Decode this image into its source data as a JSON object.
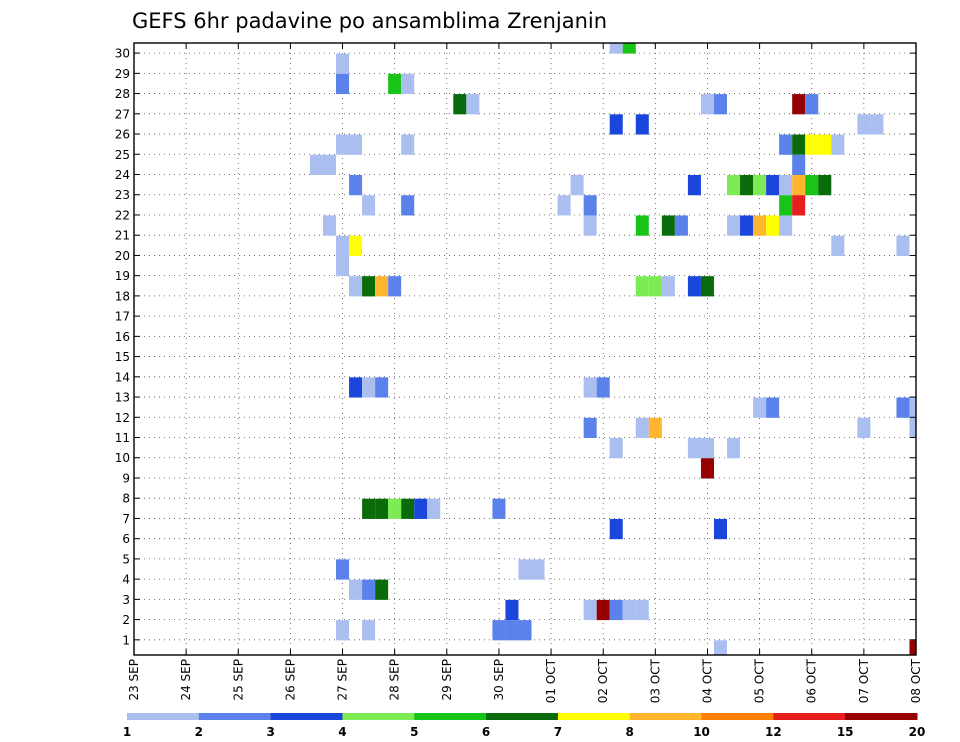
{
  "chart_data": {
    "type": "heatmap",
    "title": "GEFS 6hr padavine po ansamblima Zrenjanin",
    "xlabel": "",
    "ylabel": "",
    "x_tick_labels": [
      "23 SEP",
      "24 SEP",
      "25 SEP",
      "26 SEP",
      "27 SEP",
      "28 SEP",
      "29 SEP",
      "30 SEP",
      "01 OCT",
      "02 OCT",
      "03 OCT",
      "04 OCT",
      "05 OCT",
      "06 OCT",
      "07 OCT",
      "08 OCT"
    ],
    "y_tick_labels": [
      "1",
      "2",
      "3",
      "4",
      "5",
      "6",
      "7",
      "8",
      "9",
      "10",
      "11",
      "12",
      "13",
      "14",
      "15",
      "16",
      "17",
      "18",
      "19",
      "20",
      "21",
      "22",
      "23",
      "24",
      "25",
      "26",
      "27",
      "28",
      "29",
      "30"
    ],
    "xlim_days": [
      0,
      15
    ],
    "ylim_members": [
      0,
      30
    ],
    "time_step_hours": 6,
    "grid": true,
    "legend_position": "bottom",
    "color_scale": {
      "labels": [
        "1",
        "2",
        "3",
        "4",
        "5",
        "6",
        "7",
        "8",
        "10",
        "12",
        "15",
        "20"
      ],
      "colors": [
        "#aabff0",
        "#5b82ea",
        "#1a46dc",
        "#7ceb54",
        "#19c419",
        "#0a6b0a",
        "#ffff00",
        "#ffb52d",
        "#ff7f00",
        "#e61e1e",
        "#960000"
      ],
      "cell_colors_by_level": [
        "",
        "#aabff0",
        "#5b82ea",
        "#1a46dc",
        "#7ceb54",
        "#19c419",
        "#0a6b0a",
        "#ffff00",
        "#ffb52d",
        "#ff7f00",
        "#e61e1e",
        "#960000"
      ]
    },
    "cells": [
      [
        30,
        9.25,
        1
      ],
      [
        30,
        9.5,
        5
      ],
      [
        29,
        4,
        1
      ],
      [
        28,
        4,
        2
      ],
      [
        28,
        5,
        5
      ],
      [
        28,
        5.25,
        1
      ],
      [
        27,
        6.25,
        6
      ],
      [
        27,
        6.5,
        1
      ],
      [
        27,
        11,
        1
      ],
      [
        27,
        11.25,
        2
      ],
      [
        27,
        12.75,
        11
      ],
      [
        27,
        13,
        2
      ],
      [
        26,
        9.25,
        3
      ],
      [
        26,
        9.75,
        3
      ],
      [
        26,
        14,
        1
      ],
      [
        26,
        14.25,
        1
      ],
      [
        25,
        4,
        1
      ],
      [
        25,
        4.25,
        1
      ],
      [
        25,
        5.25,
        1
      ],
      [
        25,
        12.5,
        2
      ],
      [
        25,
        12.75,
        6
      ],
      [
        25,
        13,
        7
      ],
      [
        25,
        13.25,
        7
      ],
      [
        25,
        13.5,
        1
      ],
      [
        24,
        3.5,
        1
      ],
      [
        24,
        3.75,
        1
      ],
      [
        24,
        12.75,
        2
      ],
      [
        23,
        4.25,
        2
      ],
      [
        23,
        8.5,
        1
      ],
      [
        23,
        10.75,
        3
      ],
      [
        23,
        11.5,
        4
      ],
      [
        23,
        11.75,
        6
      ],
      [
        23,
        12,
        4
      ],
      [
        23,
        12.25,
        3
      ],
      [
        23,
        12.5,
        1
      ],
      [
        23,
        12.75,
        8
      ],
      [
        23,
        13,
        5
      ],
      [
        23,
        13.25,
        6
      ],
      [
        22,
        4.5,
        1
      ],
      [
        22,
        5.25,
        2
      ],
      [
        22,
        8.25,
        1
      ],
      [
        22,
        8.75,
        2
      ],
      [
        22,
        12.5,
        5
      ],
      [
        22,
        12.75,
        10
      ],
      [
        21,
        3.75,
        1
      ],
      [
        21,
        8.75,
        1
      ],
      [
        21,
        9.75,
        5
      ],
      [
        21,
        10.25,
        6
      ],
      [
        21,
        10.5,
        2
      ],
      [
        21,
        11.5,
        1
      ],
      [
        21,
        11.75,
        3
      ],
      [
        21,
        12,
        8
      ],
      [
        21,
        12.25,
        7
      ],
      [
        21,
        12.5,
        1
      ],
      [
        20,
        4,
        1
      ],
      [
        20,
        4.25,
        7
      ],
      [
        20,
        13.5,
        1
      ],
      [
        20,
        14.75,
        1
      ],
      [
        19,
        4,
        1
      ],
      [
        18,
        4.25,
        1
      ],
      [
        18,
        4.5,
        6
      ],
      [
        18,
        4.75,
        8
      ],
      [
        18,
        5,
        2
      ],
      [
        18,
        9.75,
        4
      ],
      [
        18,
        10,
        4
      ],
      [
        18,
        10.25,
        1
      ],
      [
        18,
        10.75,
        3
      ],
      [
        18,
        11,
        6
      ],
      [
        13,
        4.25,
        3
      ],
      [
        13,
        4.5,
        1
      ],
      [
        13,
        4.75,
        2
      ],
      [
        13,
        8.75,
        1
      ],
      [
        13,
        9,
        2
      ],
      [
        12,
        12,
        1
      ],
      [
        12,
        12.25,
        2
      ],
      [
        12,
        14.75,
        2
      ],
      [
        12,
        15,
        1
      ],
      [
        11,
        8.75,
        2
      ],
      [
        11,
        9.75,
        1
      ],
      [
        11,
        10,
        8
      ],
      [
        11,
        14,
        1
      ],
      [
        11,
        15,
        1
      ],
      [
        10,
        9.25,
        1
      ],
      [
        10,
        10.75,
        1
      ],
      [
        10,
        11,
        1
      ],
      [
        10,
        11.5,
        1
      ],
      [
        9,
        11,
        11
      ],
      [
        7,
        4.5,
        6
      ],
      [
        7,
        4.75,
        6
      ],
      [
        7,
        5,
        4
      ],
      [
        7,
        5.25,
        6
      ],
      [
        7,
        5.5,
        3
      ],
      [
        7,
        5.75,
        1
      ],
      [
        7,
        7,
        2
      ],
      [
        6,
        9.25,
        3
      ],
      [
        6,
        11.25,
        3
      ],
      [
        4,
        4,
        2
      ],
      [
        4,
        7.5,
        1
      ],
      [
        4,
        7.75,
        1
      ],
      [
        3,
        4.25,
        1
      ],
      [
        3,
        4.5,
        2
      ],
      [
        3,
        4.75,
        6
      ],
      [
        2,
        7.25,
        3
      ],
      [
        2,
        8.75,
        1
      ],
      [
        2,
        9,
        11
      ],
      [
        2,
        9.25,
        2
      ],
      [
        2,
        9.5,
        1
      ],
      [
        2,
        9.75,
        1
      ],
      [
        1,
        4,
        1
      ],
      [
        1,
        4.5,
        1
      ],
      [
        1,
        7,
        2
      ],
      [
        1,
        7.25,
        2
      ],
      [
        1,
        7.5,
        2
      ],
      [
        0,
        11.25,
        1
      ],
      [
        0,
        15,
        11
      ]
    ]
  }
}
